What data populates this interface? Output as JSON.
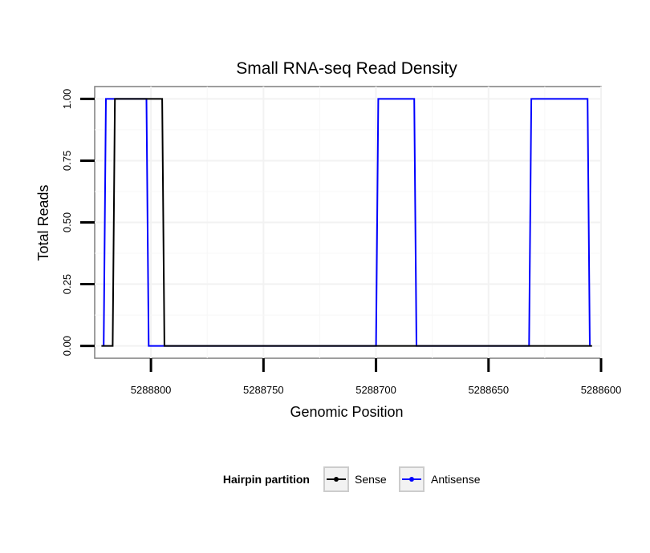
{
  "chart_data": {
    "type": "line",
    "title": "Small RNA-seq Read Density",
    "xlabel": "Genomic Position",
    "ylabel": "Total Reads",
    "xlim": [
      5288825,
      5288600
    ],
    "x_reversed": true,
    "ylim": [
      -0.05,
      1.05
    ],
    "x_ticks": [
      5288800,
      5288750,
      5288700,
      5288650,
      5288600
    ],
    "x_tick_labels": [
      "5288800",
      "5288750",
      "5288700",
      "5288650",
      "5288600"
    ],
    "y_ticks": [
      0,
      0.25,
      0.5,
      0.75,
      1
    ],
    "y_tick_labels": [
      "0.00",
      "0.25",
      "0.50",
      "0.75",
      "1.00"
    ],
    "grid": true,
    "legend": {
      "title": "Hairpin partition",
      "position": "bottom",
      "entries": [
        "Sense",
        "Antisense"
      ]
    },
    "series": [
      {
        "name": "Sense",
        "color": "#000000",
        "x": [
          5288822,
          5288817,
          5288816,
          5288795,
          5288794,
          5288604
        ],
        "y": [
          0,
          0,
          1,
          1,
          0,
          0
        ]
      },
      {
        "name": "Antisense",
        "color": "#0000ff",
        "x": [
          5288821,
          5288820,
          5288802,
          5288801,
          5288700,
          5288699,
          5288683,
          5288682,
          5288632,
          5288631,
          5288606,
          5288605
        ],
        "y": [
          0,
          1,
          1,
          0,
          0,
          1,
          1,
          0,
          0,
          1,
          1,
          0
        ]
      }
    ]
  }
}
